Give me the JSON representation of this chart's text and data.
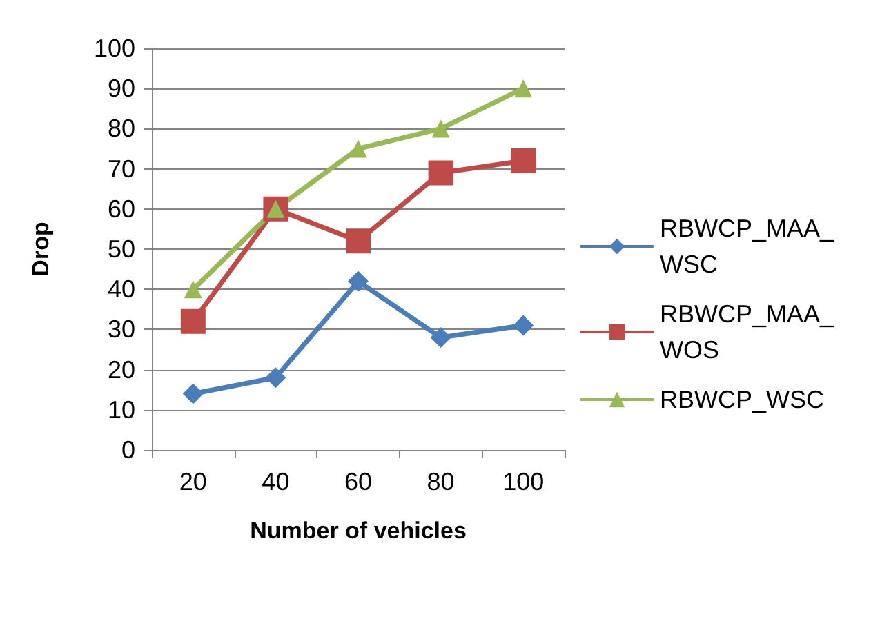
{
  "chart_data": {
    "type": "line",
    "xlabel": "Number of vehicles",
    "ylabel": "Drop",
    "categories": [
      "20",
      "40",
      "60",
      "80",
      "100"
    ],
    "series": [
      {
        "name": "RBWCP_MAA_WSC",
        "color": "#4a7ebb",
        "marker": "diamond",
        "values": [
          14,
          18,
          42,
          28,
          31
        ]
      },
      {
        "name": "RBWCP_MAA_WOS",
        "color": "#be4b48",
        "marker": "square",
        "values": [
          32,
          60,
          52,
          69,
          72
        ]
      },
      {
        "name": "RBWCP_WSC",
        "color": "#98b954",
        "marker": "triangle",
        "values": [
          40,
          60,
          75,
          80,
          90
        ]
      }
    ],
    "ylim": [
      0,
      100
    ],
    "yticks": [
      0,
      10,
      20,
      30,
      40,
      50,
      60,
      70,
      80,
      90,
      100
    ],
    "grid": "y",
    "legend": "right"
  }
}
